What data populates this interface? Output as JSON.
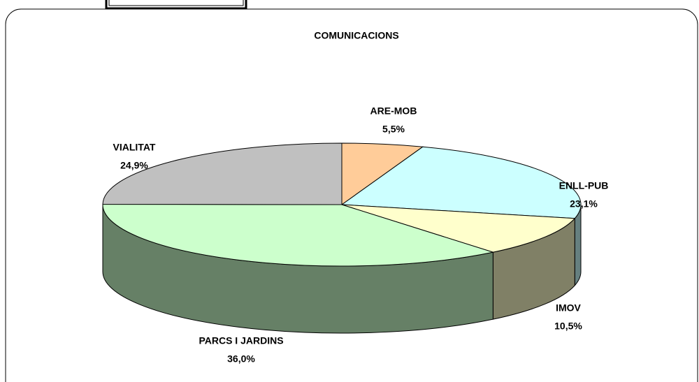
{
  "chart_data": {
    "type": "pie",
    "title": "COMUNICACIONS",
    "categories": [
      "ARE-MOB",
      "ENLL-PUB",
      "IMOV",
      "PARCS I JARDINS",
      "VIALITAT"
    ],
    "values": [
      5.5,
      23.1,
      10.5,
      36.0,
      24.9
    ],
    "value_labels": [
      "5,5%",
      "23,1%",
      "10,5%",
      "36,0%",
      "24,9%"
    ],
    "colors": [
      "#ffcc99",
      "#ccffff",
      "#ffffcc",
      "#ccffcc",
      "#c0c0c0"
    ]
  }
}
